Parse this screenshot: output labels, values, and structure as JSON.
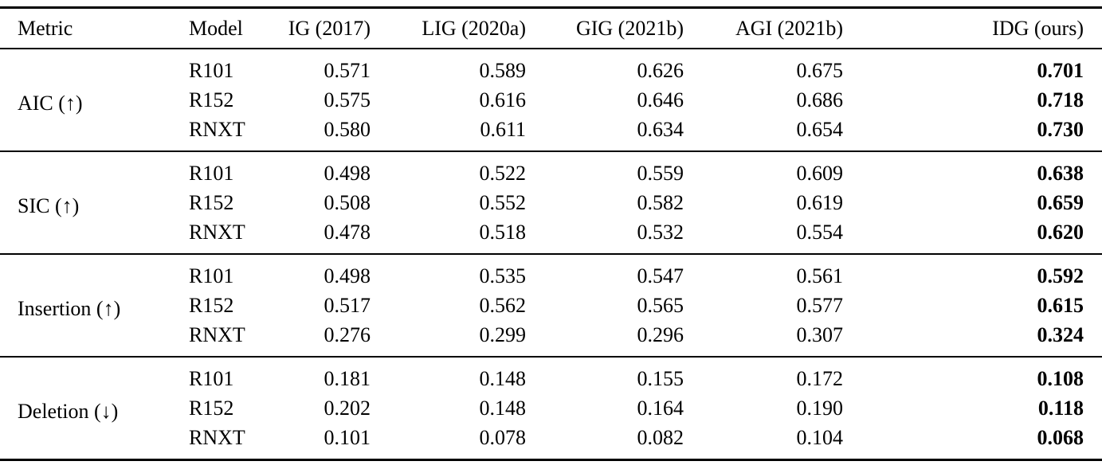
{
  "chart_data": {
    "type": "table",
    "columns": [
      "Metric",
      "Model",
      "IG (2017)",
      "LIG (2020a)",
      "GIG (2021b)",
      "AGI (2021b)",
      "IDG (ours)"
    ],
    "bold_column": "IDG (ours)",
    "groups": [
      {
        "metric": "AIC (↑)",
        "rows": [
          {
            "model": "R101",
            "values": [
              "0.571",
              "0.589",
              "0.626",
              "0.675",
              "0.701"
            ]
          },
          {
            "model": "R152",
            "values": [
              "0.575",
              "0.616",
              "0.646",
              "0.686",
              "0.718"
            ]
          },
          {
            "model": "RNXT",
            "values": [
              "0.580",
              "0.611",
              "0.634",
              "0.654",
              "0.730"
            ]
          }
        ]
      },
      {
        "metric": "SIC (↑)",
        "rows": [
          {
            "model": "R101",
            "values": [
              "0.498",
              "0.522",
              "0.559",
              "0.609",
              "0.638"
            ]
          },
          {
            "model": "R152",
            "values": [
              "0.508",
              "0.552",
              "0.582",
              "0.619",
              "0.659"
            ]
          },
          {
            "model": "RNXT",
            "values": [
              "0.478",
              "0.518",
              "0.532",
              "0.554",
              "0.620"
            ]
          }
        ]
      },
      {
        "metric": "Insertion (↑)",
        "rows": [
          {
            "model": "R101",
            "values": [
              "0.498",
              "0.535",
              "0.547",
              "0.561",
              "0.592"
            ]
          },
          {
            "model": "R152",
            "values": [
              "0.517",
              "0.562",
              "0.565",
              "0.577",
              "0.615"
            ]
          },
          {
            "model": "RNXT",
            "values": [
              "0.276",
              "0.299",
              "0.296",
              "0.307",
              "0.324"
            ]
          }
        ]
      },
      {
        "metric": "Deletion (↓)",
        "rows": [
          {
            "model": "R101",
            "values": [
              "0.181",
              "0.148",
              "0.155",
              "0.172",
              "0.108"
            ]
          },
          {
            "model": "R152",
            "values": [
              "0.202",
              "0.148",
              "0.164",
              "0.190",
              "0.118"
            ]
          },
          {
            "model": "RNXT",
            "values": [
              "0.101",
              "0.078",
              "0.082",
              "0.104",
              "0.068"
            ]
          }
        ]
      }
    ]
  }
}
